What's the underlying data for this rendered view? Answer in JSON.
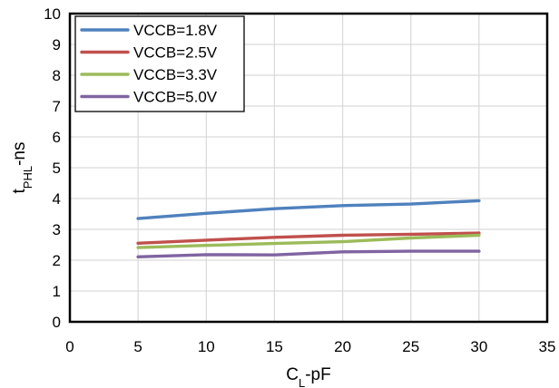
{
  "chart_data": {
    "type": "line",
    "title": "",
    "xlabel": {
      "main": "C",
      "sub": "L",
      "rest": "-pF"
    },
    "ylabel": {
      "main": "t",
      "sub": "PHL",
      "rest": "-ns"
    },
    "xlim": [
      0,
      35
    ],
    "ylim": [
      0,
      10
    ],
    "xticks": [
      0,
      5,
      10,
      15,
      20,
      25,
      30,
      35
    ],
    "yticks": [
      0,
      1,
      2,
      3,
      4,
      5,
      6,
      7,
      8,
      9,
      10
    ],
    "grid": true,
    "legend_position": "top-left",
    "x": [
      5,
      10,
      15,
      20,
      25,
      30
    ],
    "series": [
      {
        "name": "VCCB=1.8V",
        "color": "#4f81bd",
        "values": [
          3.35,
          3.52,
          3.67,
          3.77,
          3.82,
          3.93
        ]
      },
      {
        "name": "VCCB=2.5V",
        "color": "#c0504d",
        "values": [
          2.55,
          2.65,
          2.74,
          2.81,
          2.84,
          2.88
        ]
      },
      {
        "name": "VCCB=3.3V",
        "color": "#9bbb59",
        "values": [
          2.41,
          2.48,
          2.54,
          2.6,
          2.72,
          2.81
        ]
      },
      {
        "name": "VCCB=5.0V",
        "color": "#8064a2",
        "values": [
          2.11,
          2.18,
          2.17,
          2.27,
          2.29,
          2.29
        ]
      }
    ]
  }
}
